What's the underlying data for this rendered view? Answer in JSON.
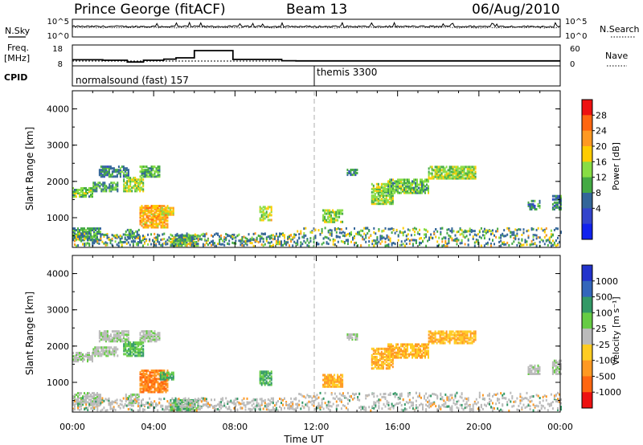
{
  "header": {
    "station": "Prince George (fitACF)",
    "beam": "Beam 13",
    "date": "06/Aug/2010"
  },
  "noise_panel": {
    "left_label": "N.Sky",
    "right_label": "N.Search",
    "left_ticks": [
      "10^5",
      "10^0"
    ],
    "right_ticks": [
      "10^5",
      "10^0"
    ]
  },
  "freq_panel": {
    "left_label_1": "Freq.",
    "left_label_2": "[MHz]",
    "right_label": "Nave",
    "left_ticks": [
      "18",
      "8"
    ],
    "right_ticks": [
      "60",
      "0"
    ]
  },
  "cpid": {
    "label": "CPID",
    "mode1": "normalsound (fast) 157",
    "mode2": "themis 3300"
  },
  "axes": {
    "ylabel": "Slant Range [km]",
    "yticks": [
      "1000",
      "2000",
      "3000",
      "4000"
    ],
    "xticks": [
      "00:00",
      "04:00",
      "08:00",
      "12:00",
      "16:00",
      "20:00",
      "00:00"
    ],
    "xlabel": "Time UT"
  },
  "power_colorbar": {
    "label": "Power [dB]",
    "ticks": [
      "28",
      "24",
      "20",
      "16",
      "12",
      "8",
      "4"
    ],
    "colors": [
      "#ee1111",
      "#ff6611",
      "#ff9922",
      "#ffcc00",
      "#88dd44",
      "#44aa44",
      "#336699",
      "#3344cc",
      "#1122ee"
    ]
  },
  "velocity_colorbar": {
    "label": "Velocity [m s⁻¹]",
    "ticks": [
      "1000",
      "500",
      "100",
      "25",
      "-25",
      "-100",
      "-500",
      "-1000"
    ],
    "colors": [
      "#2233cc",
      "#3366bb",
      "#339966",
      "#66cc44",
      "#bbbbbb",
      "#ffcc22",
      "#ff9922",
      "#ff6611",
      "#ee1111"
    ]
  },
  "chart_data": {
    "type": "heatmap",
    "x_range_hours": [
      0,
      24
    ],
    "y_range_km": [
      180,
      4500
    ],
    "frequency_steps": [
      {
        "start": 0,
        "end": 1.5,
        "freq": 10.8
      },
      {
        "start": 1.5,
        "end": 2.7,
        "freq": 10.5
      },
      {
        "start": 2.7,
        "end": 3.5,
        "freq": 9.4
      },
      {
        "start": 3.5,
        "end": 4.5,
        "freq": 10.5
      },
      {
        "start": 4.5,
        "end": 5.1,
        "freq": 11.2
      },
      {
        "start": 5.1,
        "end": 6.0,
        "freq": 12.0
      },
      {
        "start": 6.0,
        "end": 7.9,
        "freq": 16.5
      },
      {
        "start": 7.9,
        "end": 10.3,
        "freq": 11.0
      },
      {
        "start": 10.3,
        "end": 11.0,
        "freq": 10.2
      },
      {
        "start": 11.0,
        "end": 24.0,
        "freq": 10.1
      }
    ],
    "nave_level": 12,
    "scatter_blobs": [
      {
        "t0": 0.0,
        "t1": 1.0,
        "r0": 1550,
        "r1": 1800,
        "power": 12,
        "vel": 25
      },
      {
        "t0": 1.0,
        "t1": 2.2,
        "r0": 1700,
        "r1": 1950,
        "power": 10,
        "vel": 25
      },
      {
        "t0": 1.3,
        "t1": 2.8,
        "r0": 2100,
        "r1": 2400,
        "power": 8,
        "vel": 25
      },
      {
        "t0": 3.3,
        "t1": 4.3,
        "r0": 2100,
        "r1": 2400,
        "power": 10,
        "vel": 25
      },
      {
        "t0": 2.5,
        "t1": 3.5,
        "r0": 1700,
        "r1": 2100,
        "power": 14,
        "vel": 100
      },
      {
        "t0": 3.3,
        "t1": 4.7,
        "r0": 700,
        "r1": 1300,
        "power": 20,
        "vel": -500
      },
      {
        "t0": 4.3,
        "t1": 5.0,
        "r0": 1050,
        "r1": 1250,
        "power": 18,
        "vel": 100
      },
      {
        "t0": 2.6,
        "t1": 3.3,
        "r0": 400,
        "r1": 650,
        "power": 10,
        "vel": 25
      },
      {
        "t0": 4.8,
        "t1": 6.2,
        "r0": 200,
        "r1": 500,
        "power": 12,
        "vel": 100
      },
      {
        "t0": 0.0,
        "t1": 1.4,
        "r0": 350,
        "r1": 700,
        "power": 10,
        "vel": 25
      },
      {
        "t0": 9.2,
        "t1": 9.8,
        "r0": 900,
        "r1": 1300,
        "power": 16,
        "vel": 100
      },
      {
        "t0": 12.3,
        "t1": 13.3,
        "r0": 850,
        "r1": 1200,
        "power": 14,
        "vel": -100
      },
      {
        "t0": 13.5,
        "t1": 14.0,
        "r0": 2150,
        "r1": 2300,
        "power": 8,
        "vel": 25
      },
      {
        "t0": 14.7,
        "t1": 15.8,
        "r0": 1350,
        "r1": 1900,
        "power": 14,
        "vel": -100
      },
      {
        "t0": 15.5,
        "t1": 17.5,
        "r0": 1650,
        "r1": 2050,
        "power": 12,
        "vel": -100
      },
      {
        "t0": 17.5,
        "t1": 19.8,
        "r0": 2050,
        "r1": 2400,
        "power": 14,
        "vel": -100
      },
      {
        "t0": 22.4,
        "t1": 23.0,
        "r0": 1200,
        "r1": 1450,
        "power": 8,
        "vel": 25
      },
      {
        "t0": 23.6,
        "t1": 24.0,
        "r0": 1200,
        "r1": 1600,
        "power": 8,
        "vel": 25
      }
    ]
  }
}
